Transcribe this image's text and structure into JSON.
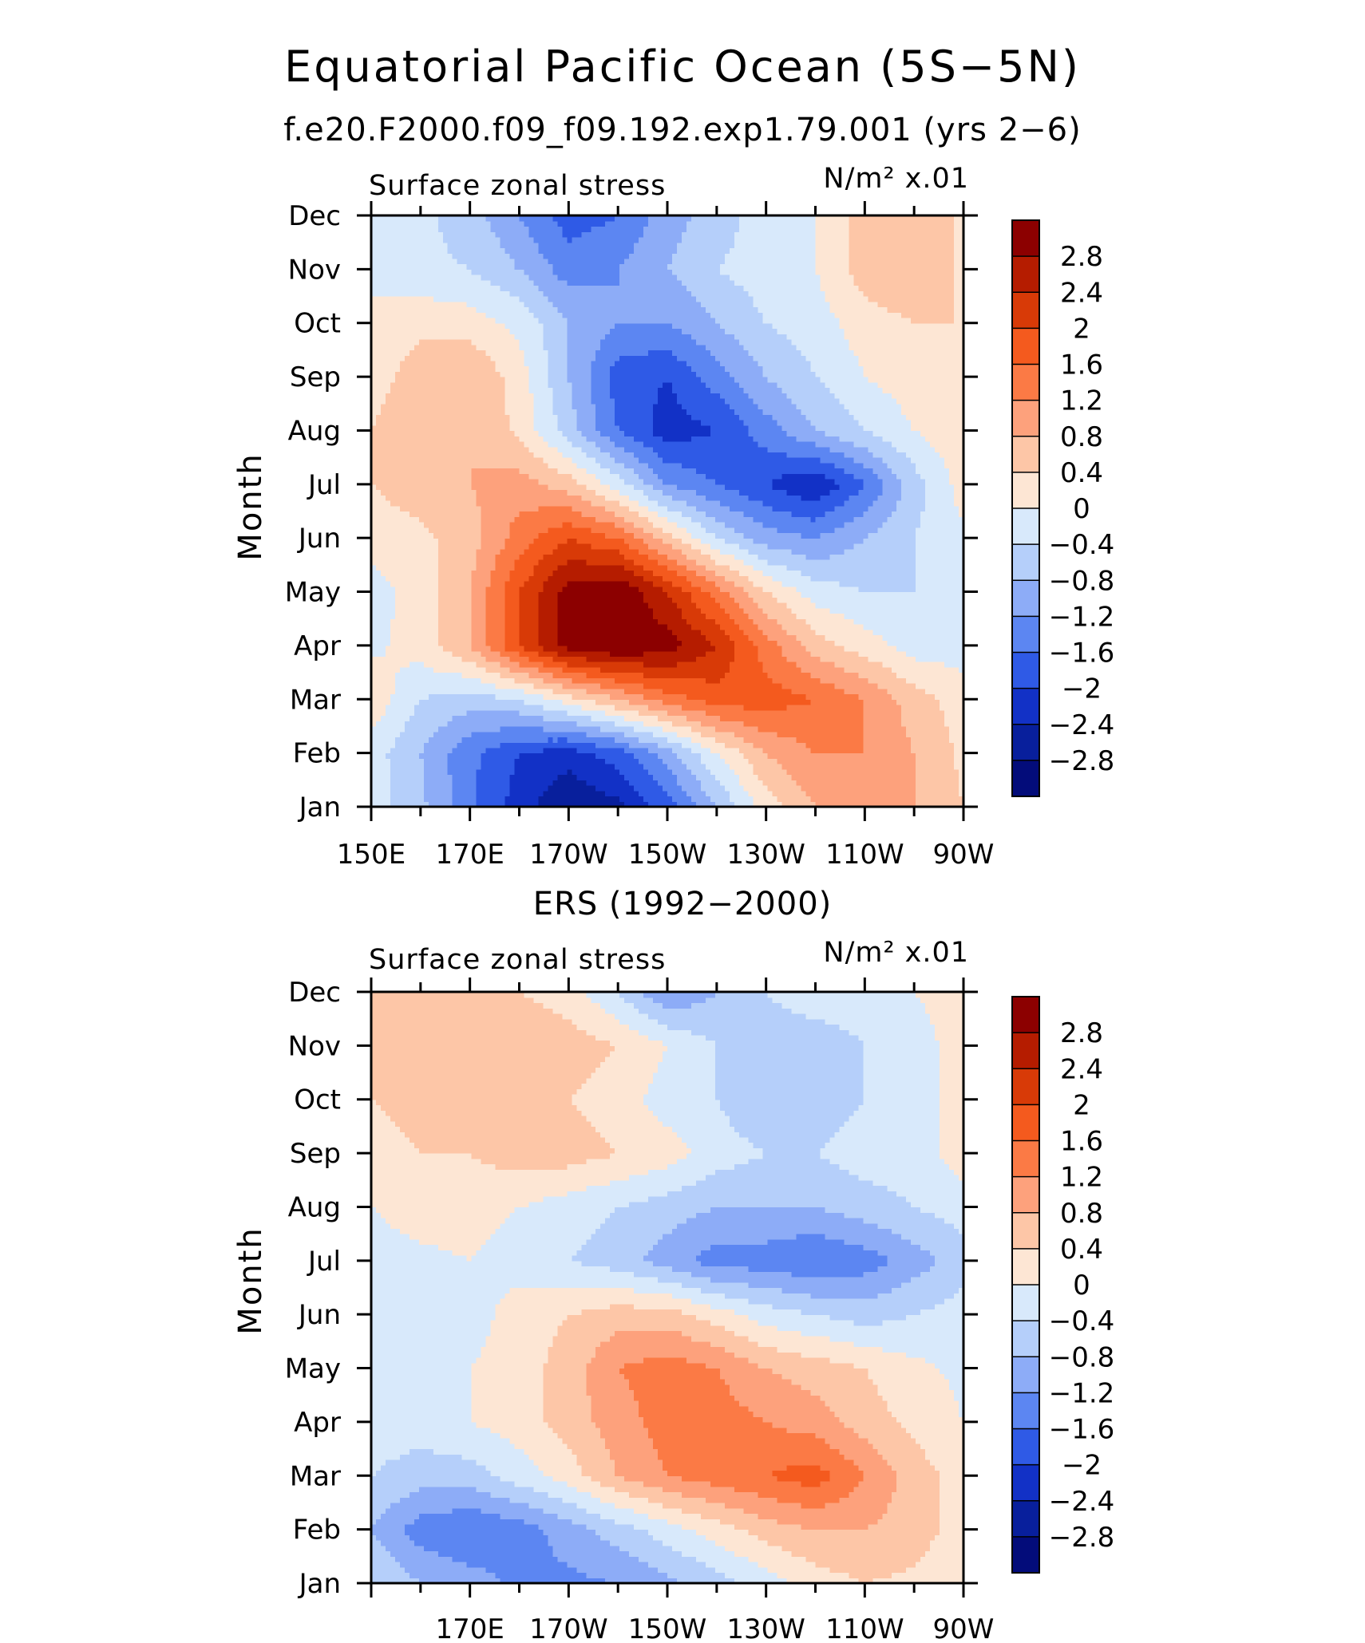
{
  "figure": {
    "title": "Equatorial Pacific Ocean (5S−5N)",
    "subtitle": "f.e20.F2000.f09_f09.192.exp1.79.001 (yrs 2−6)"
  },
  "colorbar": {
    "levels": [
      "2.8",
      "2.4",
      "2",
      "1.6",
      "1.2",
      "0.8",
      "0.4",
      "0",
      "−0.4",
      "−0.8",
      "−1.2",
      "−1.6",
      "−2",
      "−2.4",
      "−2.8"
    ],
    "colors": [
      "#8c0000",
      "#b51c00",
      "#d83a07",
      "#f45a1e",
      "#fb7a45",
      "#fda17c",
      "#fdc6a7",
      "#fde6d4",
      "#d8e9fb",
      "#b5cffa",
      "#8dacf7",
      "#5c86f2",
      "#2f5ae6",
      "#1231c6",
      "#081f9c",
      "#030c7a"
    ]
  },
  "chart_data": [
    {
      "type": "heatmap",
      "title": "f.e20.F2000.f09_f09.192.exp1.79.001 (yrs 2−6)",
      "left_label": "Surface zonal stress",
      "right_label": "N/m² x.01",
      "ylabel": "Month",
      "xlabel": "",
      "x_ticks": [
        "150E",
        "170E",
        "170W",
        "150W",
        "130W",
        "110W",
        "90W"
      ],
      "y_ticks": [
        "Jan",
        "Feb",
        "Mar",
        "Apr",
        "May",
        "Jun",
        "Jul",
        "Aug",
        "Sep",
        "Oct",
        "Nov",
        "Dec"
      ],
      "x": [
        150,
        160,
        170,
        180,
        190,
        200,
        210,
        220,
        230,
        240,
        250,
        260,
        270
      ],
      "y": [
        1,
        2,
        3,
        4,
        5,
        6,
        7,
        8,
        9,
        10,
        11,
        12
      ],
      "z": [
        [
          -0.2,
          -0.7,
          -1.5,
          -2.2,
          -2.8,
          -2.5,
          -1.8,
          -0.8,
          0.2,
          0.8,
          1.0,
          0.8,
          0.4
        ],
        [
          -0.2,
          -0.8,
          -1.5,
          -2.0,
          -2.2,
          -1.8,
          -1.0,
          0.0,
          0.8,
          1.2,
          1.2,
          0.8,
          0.3
        ],
        [
          0.3,
          -0.4,
          -0.6,
          -0.4,
          0.2,
          0.8,
          1.4,
          1.8,
          1.8,
          1.6,
          1.2,
          0.6,
          0.2
        ],
        [
          -0.1,
          0.2,
          0.8,
          2.0,
          3.0,
          3.2,
          3.0,
          2.4,
          1.4,
          0.6,
          0.2,
          -0.2,
          -0.2
        ],
        [
          -0.2,
          0.2,
          0.8,
          2.0,
          3.0,
          3.2,
          2.4,
          1.4,
          0.4,
          -0.2,
          -0.4,
          -0.4,
          -0.2
        ],
        [
          0.2,
          0.3,
          0.6,
          1.4,
          2.0,
          1.6,
          0.6,
          -0.4,
          -1.0,
          -1.2,
          -0.8,
          -0.4,
          -0.1
        ],
        [
          0.4,
          0.6,
          0.8,
          1.0,
          0.6,
          -0.2,
          -1.2,
          -1.6,
          -2.0,
          -2.4,
          -1.6,
          -0.6,
          0.2
        ],
        [
          0.4,
          0.8,
          0.8,
          0.3,
          -0.6,
          -1.6,
          -2.2,
          -2.0,
          -1.4,
          -0.8,
          -0.4,
          0.0,
          0.3
        ],
        [
          0.2,
          0.6,
          0.8,
          0.2,
          -0.8,
          -1.8,
          -2.0,
          -1.4,
          -0.8,
          -0.4,
          0.0,
          0.2,
          0.2
        ],
        [
          0.2,
          0.3,
          0.2,
          -0.1,
          -0.8,
          -1.2,
          -1.2,
          -0.8,
          -0.4,
          -0.2,
          0.2,
          0.4,
          0.4
        ],
        [
          -0.2,
          -0.3,
          -0.4,
          -0.8,
          -1.4,
          -1.2,
          -0.8,
          -0.4,
          -0.2,
          0.0,
          0.6,
          0.8,
          0.3
        ],
        [
          -0.2,
          -0.3,
          -0.6,
          -1.2,
          -1.8,
          -1.6,
          -1.0,
          -0.6,
          -0.2,
          0.0,
          0.6,
          0.8,
          0.3
        ]
      ]
    },
    {
      "type": "heatmap",
      "title": "ERS (1992−2000)",
      "left_label": "Surface zonal stress",
      "right_label": "N/m² x.01",
      "ylabel": "Month",
      "xlabel": "",
      "x_ticks": [
        "170E",
        "170W",
        "150W",
        "130W",
        "110W",
        "90W"
      ],
      "y_ticks": [
        "Jan",
        "Feb",
        "Mar",
        "Apr",
        "May",
        "Jun",
        "Jul",
        "Aug",
        "Sep",
        "Oct",
        "Nov",
        "Dec"
      ],
      "x": [
        150,
        160,
        170,
        180,
        190,
        200,
        210,
        220,
        230,
        240,
        250,
        260,
        270
      ],
      "y": [
        1,
        2,
        3,
        4,
        5,
        6,
        7,
        8,
        9,
        10,
        11,
        12
      ],
      "z": [
        [
          -0.4,
          -0.8,
          -1.0,
          -1.3,
          -1.3,
          -1.2,
          -0.9,
          -0.6,
          -0.2,
          0.2,
          0.4,
          0.3,
          0.1
        ],
        [
          -0.8,
          -1.4,
          -1.6,
          -1.4,
          -1.0,
          -0.6,
          -0.2,
          0.2,
          0.6,
          0.8,
          0.8,
          0.6,
          0.2
        ],
        [
          -0.4,
          -0.6,
          -0.6,
          -0.2,
          0.2,
          0.8,
          1.2,
          1.4,
          1.6,
          1.8,
          1.2,
          0.6,
          0.2
        ],
        [
          -0.2,
          -0.2,
          0.0,
          0.2,
          0.6,
          1.0,
          1.4,
          1.4,
          1.2,
          1.0,
          0.6,
          0.3,
          0.0
        ],
        [
          -0.2,
          -0.2,
          0.0,
          0.2,
          0.6,
          1.2,
          1.4,
          1.2,
          0.8,
          0.6,
          0.4,
          0.1,
          -0.1
        ],
        [
          -0.4,
          -0.2,
          -0.2,
          0.2,
          0.4,
          0.6,
          0.6,
          0.2,
          -0.2,
          -0.4,
          -0.6,
          -0.4,
          -0.2
        ],
        [
          -0.2,
          -0.1,
          0.0,
          -0.2,
          -0.4,
          -0.6,
          -1.0,
          -1.4,
          -1.4,
          -1.6,
          -1.4,
          -1.0,
          -0.6
        ],
        [
          0.0,
          0.2,
          0.2,
          0.0,
          -0.2,
          -0.4,
          -0.6,
          -0.8,
          -0.8,
          -0.8,
          -0.6,
          -0.4,
          -0.2
        ],
        [
          0.2,
          0.4,
          0.4,
          0.6,
          0.6,
          0.4,
          0.2,
          -0.2,
          -0.4,
          -0.4,
          -0.2,
          -0.2,
          0.2
        ],
        [
          0.4,
          0.6,
          0.6,
          0.6,
          0.4,
          0.2,
          -0.2,
          -0.4,
          -0.8,
          -0.6,
          -0.4,
          -0.2,
          0.2
        ],
        [
          0.6,
          0.6,
          0.8,
          0.8,
          0.6,
          0.4,
          0.0,
          -0.4,
          -0.6,
          -0.6,
          -0.4,
          -0.2,
          0.2
        ],
        [
          0.6,
          0.6,
          0.4,
          0.4,
          0.2,
          -0.4,
          -1.2,
          -0.8,
          -0.4,
          -0.2,
          -0.2,
          0.0,
          0.2
        ]
      ]
    }
  ]
}
